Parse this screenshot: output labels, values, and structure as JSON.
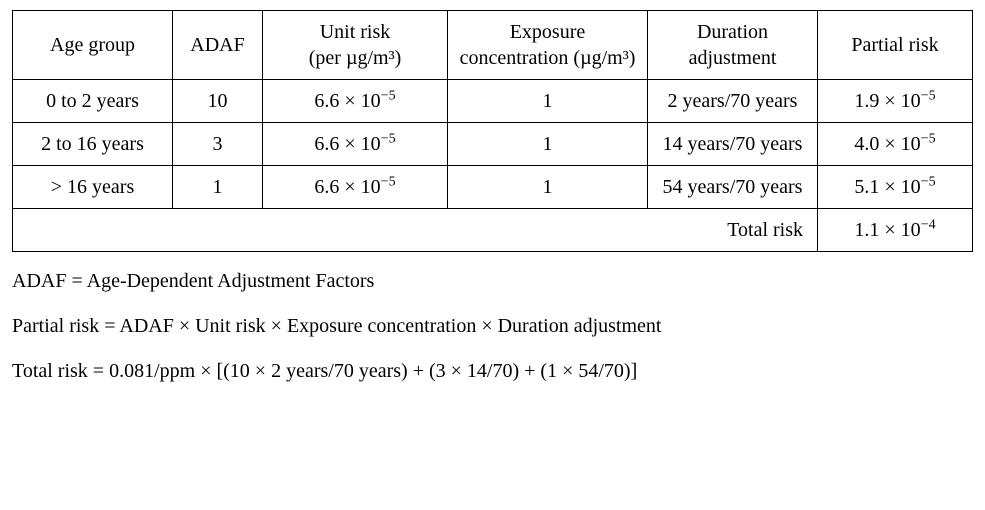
{
  "table": {
    "columns": {
      "age": "Age group",
      "adaf": "ADAF",
      "unit_risk": "Unit risk",
      "unit_risk_sub": "(per µg/m³)",
      "exposure": "Exposure concentration (µg/m³)",
      "duration": "Duration adjustment",
      "partial": "Partial risk"
    },
    "rows": [
      {
        "age": "0 to 2 years",
        "adaf": "10",
        "unit_risk": "6.6 × 10",
        "unit_risk_exp": "−5",
        "exposure": "1",
        "duration": "2 years/70 years",
        "partial": "1.9 × 10",
        "partial_exp": "−5"
      },
      {
        "age": "2 to 16 years",
        "adaf": "3",
        "unit_risk": "6.6 × 10",
        "unit_risk_exp": "−5",
        "exposure": "1",
        "duration": "14 years/70 years",
        "partial": "4.0 × 10",
        "partial_exp": "−5"
      },
      {
        "age": "> 16 years",
        "adaf": "1",
        "unit_risk": "6.6 × 10",
        "unit_risk_exp": "−5",
        "exposure": "1",
        "duration": "54 years/70 years",
        "partial": "5.1 × 10",
        "partial_exp": "−5"
      }
    ],
    "total_label": "Total risk",
    "total_value": "1.1 × 10",
    "total_exp": "−4"
  },
  "notes": {
    "line1": "ADAF = Age-Dependent Adjustment Factors",
    "line2": "Partial risk = ADAF × Unit risk × Exposure concentration × Duration adjustment",
    "line3": "Total risk = 0.081/ppm × [(10 × 2 years/70 years) + (3 × 14/70) + (1 × 54/70)]"
  }
}
